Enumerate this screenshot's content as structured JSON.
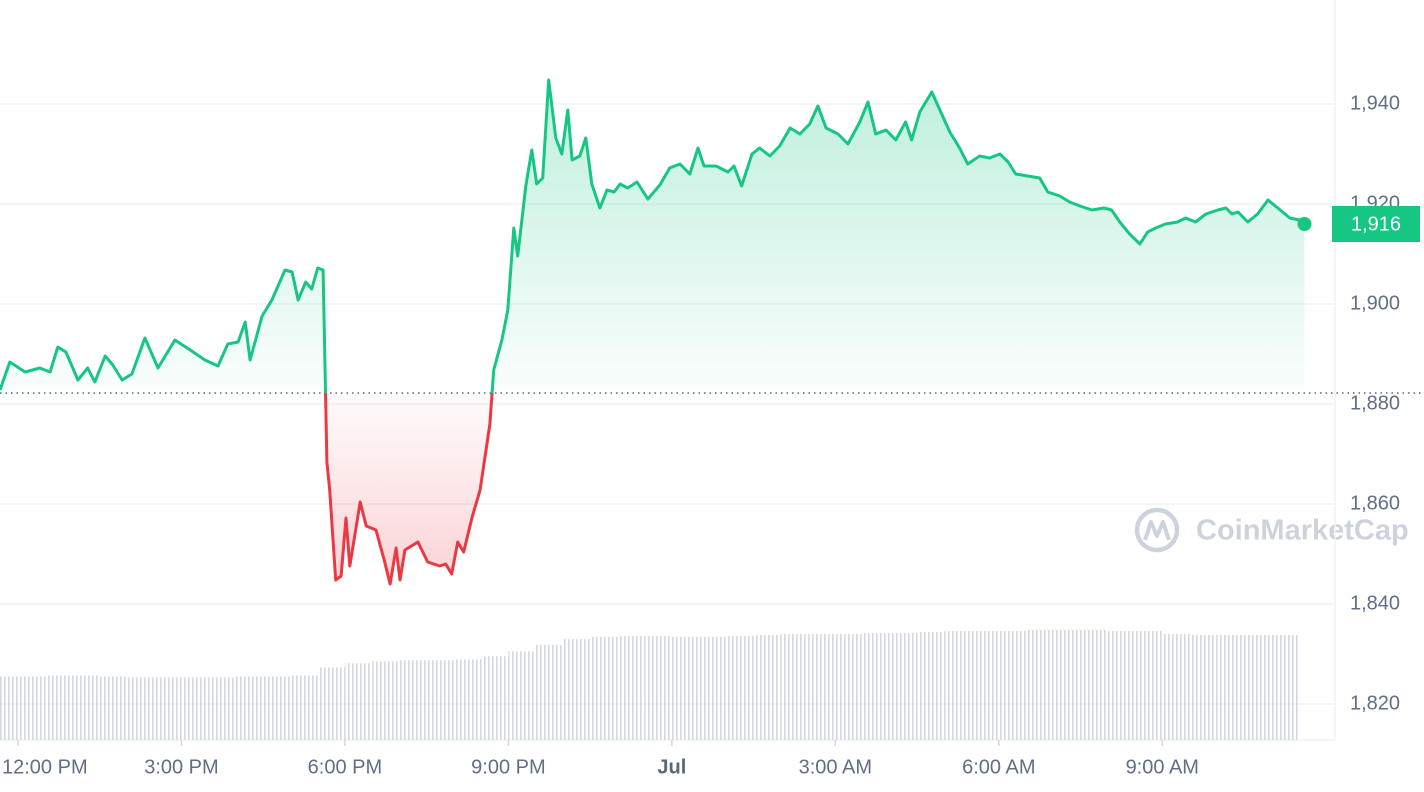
{
  "chart_data": {
    "type": "line",
    "x": [
      -0.33,
      -0.15,
      0.13,
      0.4,
      0.59,
      0.73,
      0.88,
      1.1,
      1.28,
      1.41,
      1.6,
      1.74,
      1.91,
      2.09,
      2.33,
      2.57,
      2.88,
      3.16,
      3.43,
      3.67,
      3.85,
      4.04,
      4.17,
      4.26,
      4.48,
      4.66,
      4.9,
      5.03,
      5.14,
      5.28,
      5.39,
      5.5,
      5.6,
      5.67,
      5.72,
      5.83,
      5.93,
      6.02,
      6.09,
      6.28,
      6.39,
      6.57,
      6.72,
      6.83,
      6.94,
      7.01,
      7.1,
      7.34,
      7.52,
      7.74,
      7.85,
      7.96,
      8.07,
      8.18,
      8.33,
      8.48,
      8.66,
      8.73,
      8.88,
      8.99,
      9.1,
      9.17,
      9.32,
      9.43,
      9.52,
      9.63,
      9.74,
      9.87,
      9.98,
      10.09,
      10.17,
      10.31,
      10.42,
      10.53,
      10.68,
      10.81,
      10.94,
      11.05,
      11.19,
      11.36,
      11.56,
      11.78,
      11.96,
      12.15,
      12.33,
      12.48,
      12.59,
      12.81,
      13.03,
      13.14,
      13.28,
      13.47,
      13.61,
      13.8,
      13.98,
      14.17,
      14.35,
      14.53,
      14.68,
      14.83,
      15.05,
      15.23,
      15.45,
      15.6,
      15.74,
      15.93,
      16.11,
      16.29,
      16.4,
      16.55,
      16.77,
      16.92,
      17.1,
      17.28,
      17.43,
      17.65,
      17.83,
      18.02,
      18.17,
      18.31,
      18.53,
      18.75,
      18.9,
      19.12,
      19.3,
      19.49,
      19.71,
      19.93,
      20.07,
      20.22,
      20.4,
      20.59,
      20.73,
      20.88,
      21.06,
      21.28,
      21.43,
      21.61,
      21.8,
      22.02,
      22.17,
      22.28,
      22.39,
      22.57,
      22.75,
      22.94,
      23.12,
      23.34,
      23.52,
      23.61
    ],
    "values": [
      1882.8,
      1888.4,
      1886.4,
      1887.2,
      1886.4,
      1891.4,
      1890.4,
      1884.8,
      1887.2,
      1884.4,
      1889.6,
      1887.8,
      1884.8,
      1886,
      1893.2,
      1887.2,
      1892.8,
      1890.8,
      1888.8,
      1887.6,
      1892,
      1892.4,
      1896.4,
      1888.8,
      1897.6,
      1900.8,
      1906.8,
      1906.4,
      1900.8,
      1904.4,
      1903,
      1907.2,
      1906.8,
      1868.4,
      1862.8,
      1844.8,
      1845.6,
      1857.2,
      1847.6,
      1860.4,
      1855.6,
      1854.8,
      1848.8,
      1844,
      1851.2,
      1844.8,
      1850.8,
      1852.4,
      1848.4,
      1847.6,
      1848,
      1846,
      1852.4,
      1850.4,
      1857.2,
      1862.8,
      1876,
      1886.8,
      1892.8,
      1898.8,
      1915.2,
      1909.6,
      1923.6,
      1930.8,
      1924,
      1925.2,
      1944.8,
      1933.2,
      1930,
      1938.8,
      1928.8,
      1929.6,
      1933.2,
      1924,
      1919.2,
      1922.8,
      1922.4,
      1924,
      1923.2,
      1924.4,
      1921,
      1923.8,
      1927.2,
      1928,
      1926,
      1931.2,
      1927.6,
      1927.6,
      1926.4,
      1927.6,
      1923.6,
      1930,
      1931.2,
      1929.6,
      1931.6,
      1935.2,
      1934,
      1936,
      1939.6,
      1935.2,
      1934,
      1932,
      1936.4,
      1940.4,
      1934,
      1934.8,
      1932.8,
      1936.4,
      1932.8,
      1938.4,
      1942.4,
      1938.8,
      1934.4,
      1931.2,
      1928,
      1929.6,
      1929.2,
      1930,
      1928.4,
      1926,
      1925.6,
      1925.2,
      1922.4,
      1921.6,
      1920.4,
      1919.6,
      1918.8,
      1919.2,
      1918.8,
      1916.4,
      1914,
      1912,
      1914.4,
      1915.2,
      1916,
      1916.4,
      1917.2,
      1916.4,
      1918,
      1918.8,
      1919.2,
      1918,
      1918.4,
      1916.4,
      1918,
      1920.8,
      1919.2,
      1917.2,
      1916.8,
      1916
    ],
    "color_up": "#16c784",
    "color_down": "#ea3943",
    "reference_price": 1882.2,
    "last_price": {
      "value": 1916,
      "label": "1,916"
    },
    "xlim": [
      -0.33,
      24.17
    ],
    "ylim": [
      1812.8,
      1960.8
    ],
    "xticks": [
      {
        "value": 0,
        "label": "12:00 PM"
      },
      {
        "value": 3,
        "label": "3:00 PM"
      },
      {
        "value": 6,
        "label": "6:00 PM"
      },
      {
        "value": 9,
        "label": "9:00 PM"
      },
      {
        "value": 12,
        "label": "Jul"
      },
      {
        "value": 15,
        "label": "3:00 AM"
      },
      {
        "value": 18,
        "label": "6:00 AM"
      },
      {
        "value": 21,
        "label": "9:00 AM"
      }
    ],
    "yticks": [
      {
        "value": 1820,
        "label": "1,820"
      },
      {
        "value": 1840,
        "label": "1,840"
      },
      {
        "value": 1860,
        "label": "1,860"
      },
      {
        "value": 1880,
        "label": "1,880"
      },
      {
        "value": 1900,
        "label": "1,900"
      },
      {
        "value": 1920,
        "label": "1,920"
      },
      {
        "value": 1940,
        "label": "1,940"
      }
    ],
    "grid": true,
    "volume": {
      "x": [
        -0.25,
        0.25,
        0.75,
        1.25,
        1.75,
        2.25,
        2.75,
        3.25,
        3.75,
        4.25,
        4.75,
        5.25,
        5.75,
        6.25,
        6.75,
        7.25,
        7.75,
        8.25,
        8.75,
        9.25,
        9.75,
        10.25,
        10.75,
        11.25,
        11.75,
        12.25,
        12.75,
        13.25,
        13.75,
        14.25,
        14.75,
        15.25,
        15.75,
        16.25,
        16.75,
        17.25,
        17.75,
        18.25,
        18.75,
        19.25,
        19.75,
        20.25,
        20.75,
        21.25,
        21.75,
        22.25,
        22.75,
        23.25
      ],
      "values": [
        63,
        63,
        64,
        64,
        63,
        62,
        62,
        62,
        62,
        63,
        63,
        64,
        72,
        76,
        78,
        79,
        79,
        80,
        83,
        88,
        94,
        100,
        102,
        103,
        103,
        102,
        102,
        103,
        104,
        105,
        105,
        105,
        106,
        106,
        107,
        108,
        108,
        108,
        109,
        109,
        109,
        108,
        108,
        105,
        104,
        104,
        104,
        104
      ]
    },
    "watermark": "CoinMarketCap"
  }
}
